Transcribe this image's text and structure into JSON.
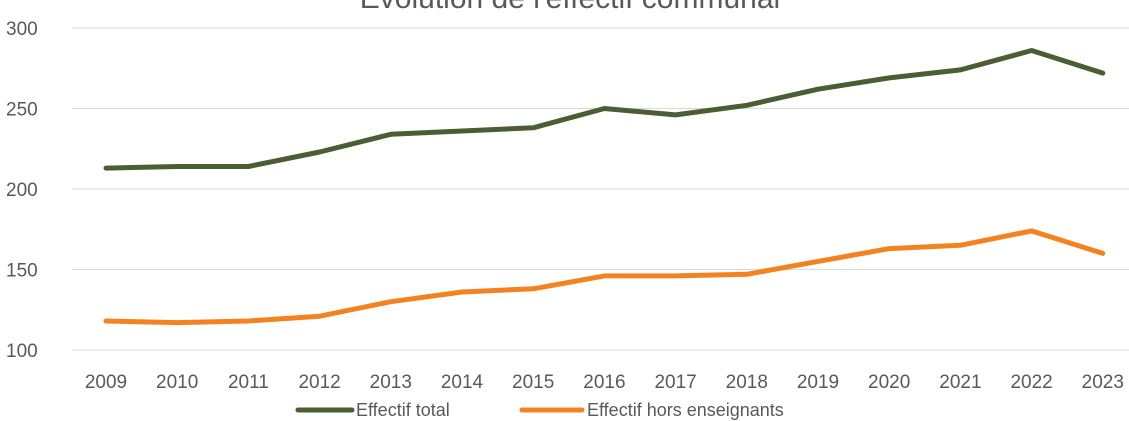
{
  "chart_data": {
    "type": "line",
    "title": "Evolution de l'effectif communal",
    "categories": [
      "2009",
      "2010",
      "2011",
      "2012",
      "2013",
      "2014",
      "2015",
      "2016",
      "2017",
      "2018",
      "2019",
      "2020",
      "2021",
      "2022",
      "2023"
    ],
    "series": [
      {
        "name": "Effectif total",
        "color": "#4b5d32",
        "values": [
          213,
          214,
          214,
          223,
          234,
          236,
          238,
          250,
          246,
          252,
          262,
          269,
          274,
          286,
          272
        ]
      },
      {
        "name": "Effectif hors enseignants",
        "color": "#f58220",
        "values": [
          118,
          117,
          118,
          121,
          130,
          136,
          138,
          146,
          146,
          147,
          155,
          163,
          165,
          174,
          160
        ]
      }
    ],
    "ylim": [
      100,
      300
    ],
    "yticks": [
      100,
      150,
      200,
      250,
      300
    ],
    "xlabel": "",
    "ylabel": "",
    "grid": true,
    "legend": "bottom"
  }
}
